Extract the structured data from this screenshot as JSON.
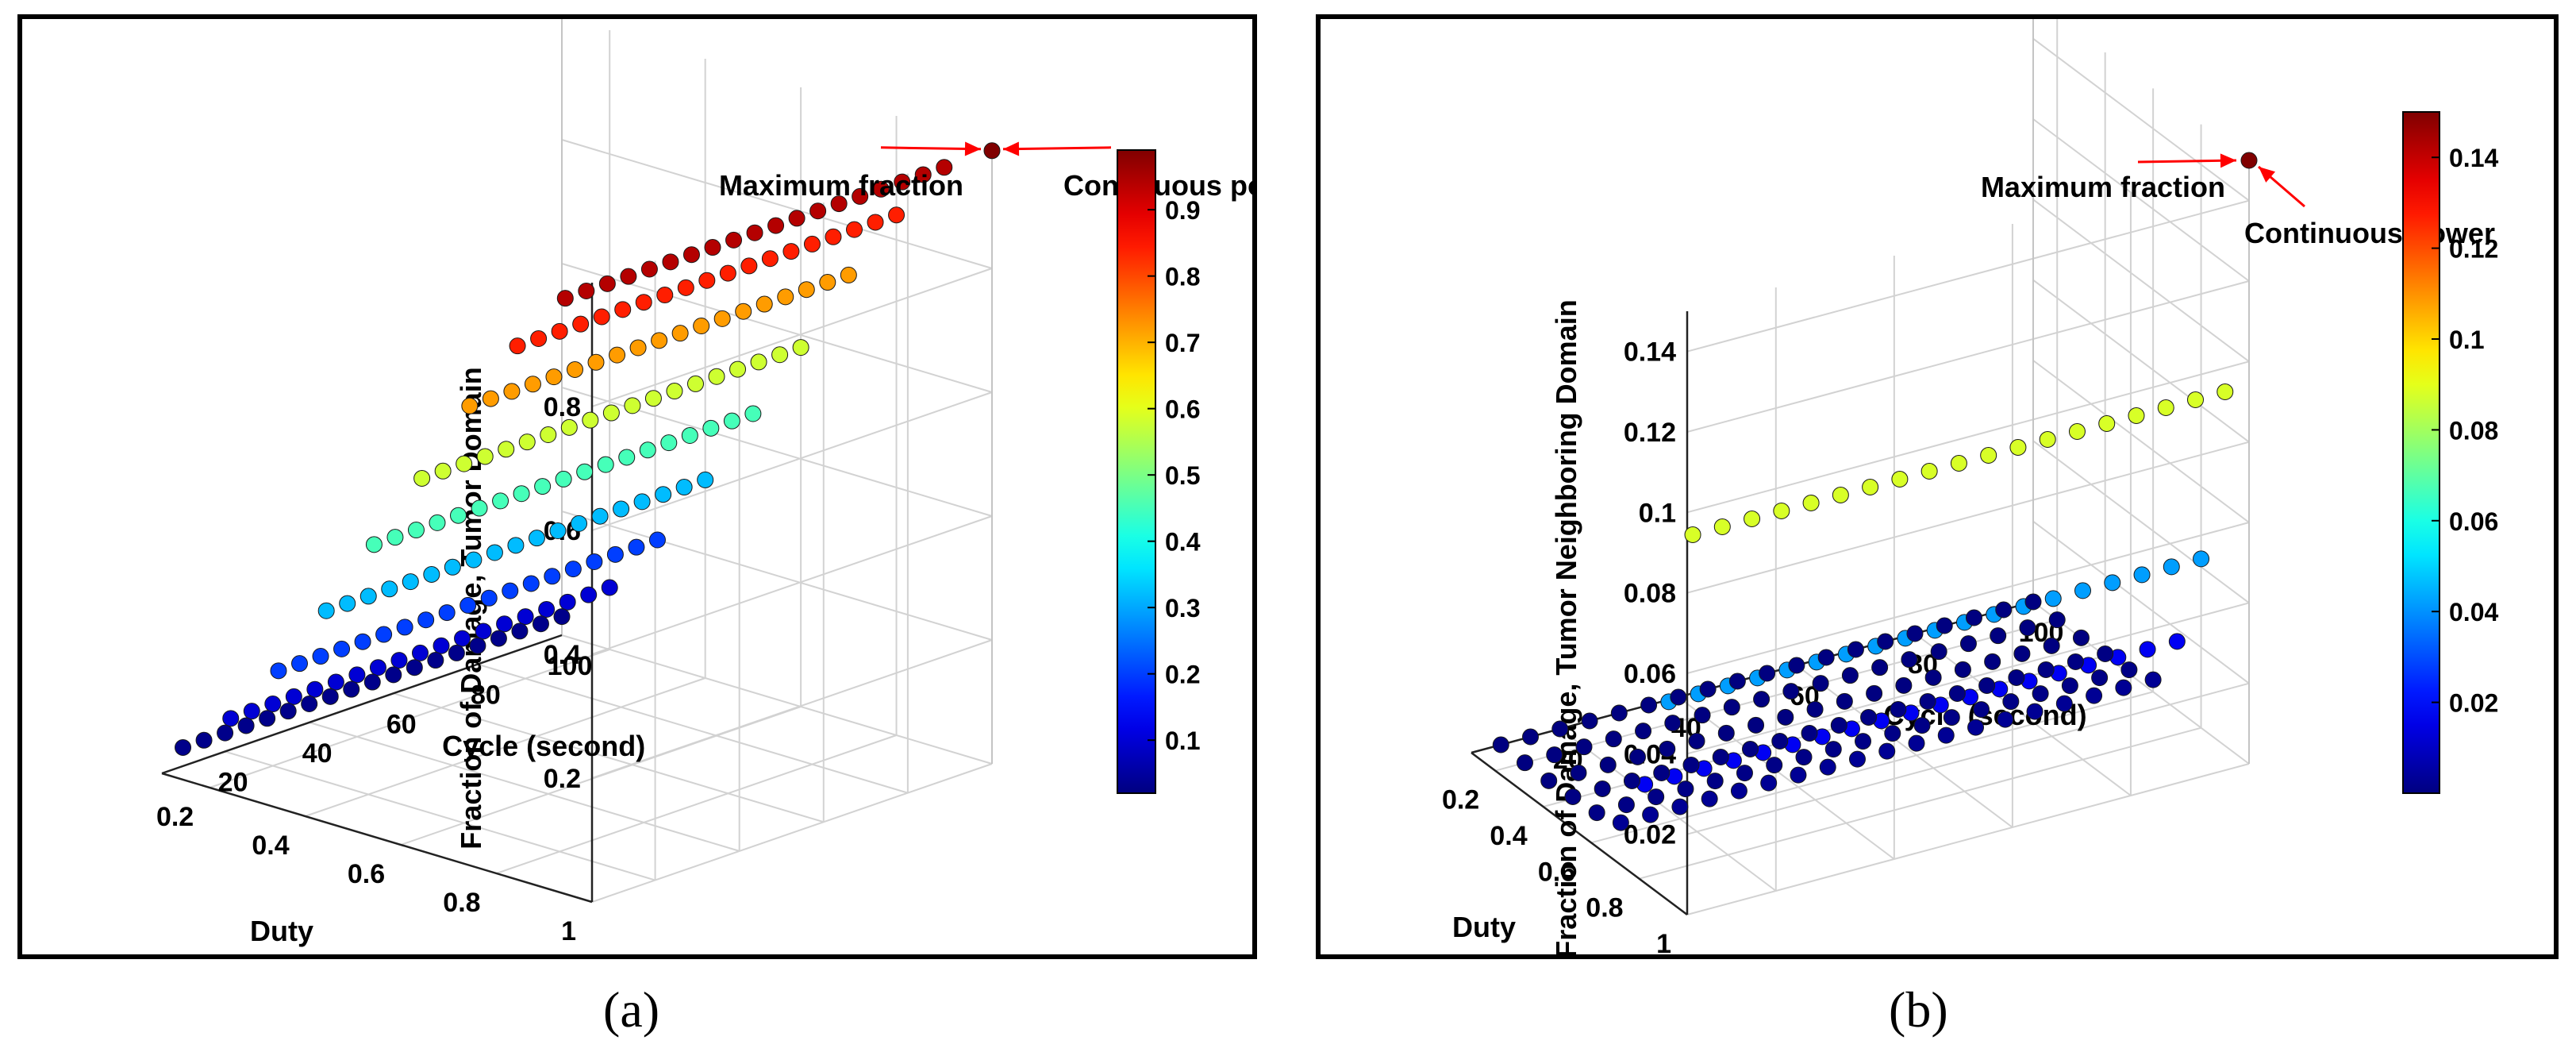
{
  "captions": [
    "(a)",
    "(b)"
  ],
  "chart_data": [
    {
      "type": "scatter",
      "subtype": "3d-scatter",
      "x_label": "Cycle (second)",
      "y_label": "Duty",
      "z_label": "Fraction of Damage, Tumor Domain",
      "x_ticks": [
        "20",
        "40",
        "60",
        "80",
        "100"
      ],
      "y_ticks": [
        "0.2",
        "0.4",
        "0.6",
        "0.8",
        "1"
      ],
      "z_ticks": [
        "0.2",
        "0.4",
        "0.6",
        "0.8"
      ],
      "x_range": [
        5,
        100
      ],
      "y_range": [
        0.1,
        1.0
      ],
      "z_range": [
        0,
        1.0
      ],
      "colorbar": {
        "range": [
          0.02,
          0.99
        ],
        "ticks": [
          "0.1",
          "0.2",
          "0.3",
          "0.4",
          "0.5",
          "0.6",
          "0.7",
          "0.8",
          "0.9"
        ],
        "colormap": "jet"
      },
      "cycle_values": [
        10,
        15,
        20,
        25,
        30,
        35,
        40,
        45,
        50,
        55,
        60,
        65,
        70,
        75,
        80,
        85,
        90,
        95,
        100
      ],
      "series": [
        {
          "duty": 0.1,
          "z": 0.03
        },
        {
          "duty": 0.2,
          "z": 0.1
        },
        {
          "duty": 0.3,
          "z": 0.2
        },
        {
          "duty": 0.4,
          "z": 0.32
        },
        {
          "duty": 0.5,
          "z": 0.45
        },
        {
          "duty": 0.6,
          "z": 0.58
        },
        {
          "duty": 0.7,
          "z": 0.72
        },
        {
          "duty": 0.8,
          "z": 0.84
        },
        {
          "duty": 0.9,
          "z": 0.94
        }
      ],
      "max_point": {
        "duty": 1.0,
        "cycle": 100,
        "z": 0.99
      },
      "annotations": [
        "Maximum fraction",
        "Continuous power"
      ]
    },
    {
      "type": "scatter",
      "subtype": "3d-scatter",
      "x_label": "Cycle (second)",
      "y_label": "Duty",
      "z_label": "Fraction of Damage, Tumor Neighboring Domain",
      "x_ticks": [
        "20",
        "40",
        "60",
        "80",
        "100"
      ],
      "y_ticks": [
        "0.2",
        "0.4",
        "0.6",
        "0.8",
        "1"
      ],
      "z_ticks": [
        "0.02",
        "0.04",
        "0.06",
        "0.08",
        "0.1",
        "0.12",
        "0.14"
      ],
      "x_range": [
        5,
        100
      ],
      "y_range": [
        0.1,
        1.0
      ],
      "z_range": [
        0,
        0.15
      ],
      "colorbar": {
        "range": [
          0.0,
          0.15
        ],
        "ticks": [
          "0.02",
          "0.04",
          "0.06",
          "0.08",
          "0.1",
          "0.12",
          "0.14"
        ],
        "colormap": "jet"
      },
      "cycle_values": [
        10,
        15,
        20,
        25,
        30,
        35,
        40,
        45,
        50,
        55,
        60,
        65,
        70,
        75,
        80,
        85,
        90,
        95,
        100
      ],
      "series": [
        {
          "duty": 0.1,
          "z": 0.0
        },
        {
          "duty": 0.2,
          "z": 0.0
        },
        {
          "duty": 0.3,
          "z": 0.0
        },
        {
          "duty": 0.4,
          "z": 0.0005
        },
        {
          "duty": 0.5,
          "z": 0.001
        },
        {
          "duty": 0.6,
          "z": 0.003
        },
        {
          "duty": 0.7,
          "z": 0.017
        },
        {
          "duty": 0.8,
          "z": 0.042
        },
        {
          "duty": 0.9,
          "z": 0.088
        }
      ],
      "max_point": {
        "duty": 1.0,
        "cycle": 100,
        "z": 0.15
      },
      "annotations": [
        "Maximum fraction",
        "Continuous power"
      ]
    }
  ]
}
